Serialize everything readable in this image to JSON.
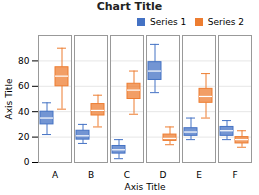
{
  "chart_data": {
    "type": "box",
    "title": "Chart Title",
    "xlabel": "Axis Title",
    "ylabel": "Axis Title",
    "categories": [
      "A",
      "B",
      "C",
      "D",
      "E",
      "F"
    ],
    "series": [
      {
        "name": "Series 1",
        "color": "#4472C4",
        "boxes": [
          {
            "whislo": 22,
            "q1": 30,
            "med": 35,
            "q3": 40,
            "whishi": 47
          },
          {
            "whislo": 15,
            "q1": 18,
            "med": 21,
            "q3": 25,
            "whishi": 30
          },
          {
            "whislo": 3,
            "q1": 7,
            "med": 10,
            "q3": 13,
            "whishi": 18
          },
          {
            "whislo": 55,
            "q1": 65,
            "med": 72,
            "q3": 79,
            "whishi": 93
          },
          {
            "whislo": 18,
            "q1": 21,
            "med": 24,
            "q3": 27,
            "whishi": 35
          },
          {
            "whislo": 18,
            "q1": 21,
            "med": 25,
            "q3": 28,
            "whishi": 33
          }
        ]
      },
      {
        "name": "Series 2",
        "color": "#ED7D31",
        "boxes": [
          {
            "whislo": 42,
            "q1": 60,
            "med": 68,
            "q3": 75,
            "whishi": 90
          },
          {
            "whislo": 28,
            "q1": 37,
            "med": 41,
            "q3": 46,
            "whishi": 53
          },
          {
            "whislo": 38,
            "q1": 50,
            "med": 57,
            "q3": 62,
            "whishi": 72
          },
          {
            "whislo": 14,
            "q1": 17,
            "med": 19,
            "q3": 22,
            "whishi": 28
          },
          {
            "whislo": 35,
            "q1": 47,
            "med": 52,
            "q3": 58,
            "whishi": 70
          },
          {
            "whislo": 12,
            "q1": 15,
            "med": 18,
            "q3": 20,
            "whishi": 25
          }
        ]
      }
    ],
    "ylim": [
      0,
      100
    ],
    "yticks": [
      0,
      20,
      40,
      60,
      80
    ],
    "grid": true,
    "legend": "upper right"
  }
}
